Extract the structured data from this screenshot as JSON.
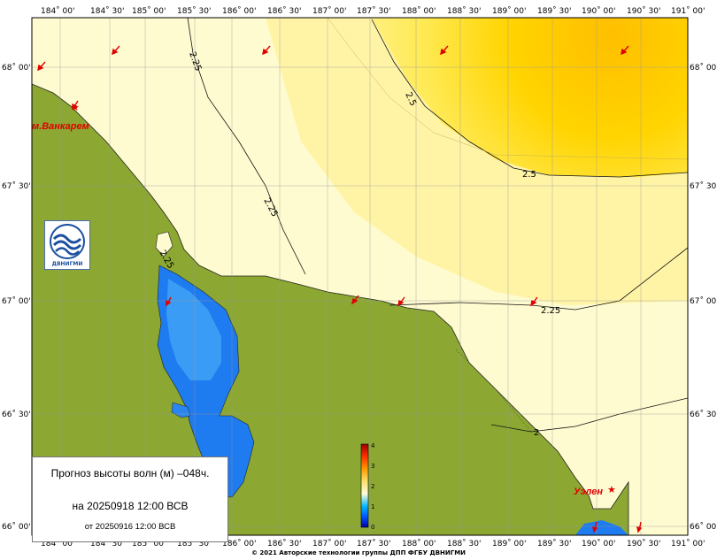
{
  "map": {
    "lon_ticks": [
      "184˚ 00'",
      "184˚ 30'",
      "185˚ 00'",
      "185˚ 30'",
      "186˚ 00'",
      "186˚ 30'",
      "187˚ 00'",
      "187˚ 30'",
      "188˚ 00'",
      "188˚ 30'",
      "189˚ 00'",
      "189˚ 30'",
      "190˚ 00'",
      "190˚ 30'",
      "191˚ 00'"
    ],
    "lat_ticks": [
      "68˚ 00'",
      "67˚ 30'",
      "67˚ 00'",
      "66˚ 30'",
      "66˚ 00'"
    ],
    "contour_labels": [
      "2.25",
      "2.5",
      "2.5",
      "2.25",
      "2.25",
      "2.25",
      "2"
    ],
    "places": [
      "м.Ванкарем",
      "Уэлен"
    ],
    "colorbar_ticks": [
      "0",
      "1",
      "2",
      "3",
      "4"
    ],
    "colors": {
      "land": "#8ca833",
      "sea_low": "#fffbd0",
      "sea_mid": "#fff3a0",
      "sea_high": "#ffc000",
      "lagoon": "#1e7bf0",
      "arrows": "#e00000"
    }
  },
  "logo": {
    "text": "ДВНИГМИ"
  },
  "legend": {
    "title": "Прогноз высоты волн (м) –048ч.",
    "issue": "на 20250918 12:00 ВСВ",
    "base": "от 20250916 12:00 ВСВ"
  },
  "footer": {
    "copyright": "© 2021 Авторские технологии группы ДПП ФГБУ ДВНИГМИ"
  }
}
